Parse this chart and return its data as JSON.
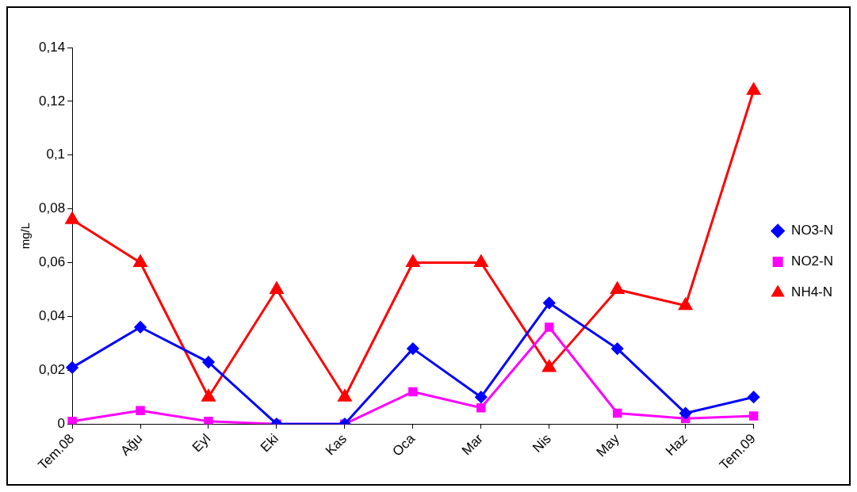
{
  "chart_data": {
    "type": "line",
    "ylabel": "mg/L",
    "categories": [
      "Tem.08",
      "Ağu",
      "Eyl",
      "Eki",
      "Kas",
      "Oca",
      "Mar",
      "Nis",
      "May",
      "Haz",
      "Tem.09"
    ],
    "series": [
      {
        "name": "NO3-N",
        "color": "#0000ff",
        "marker": "diamond",
        "values": [
          0.021,
          0.036,
          0.023,
          0,
          0,
          0.028,
          0.01,
          0.045,
          0.028,
          0.004,
          0.01
        ]
      },
      {
        "name": "NO2-N",
        "color": "#ff00ff",
        "marker": "square",
        "values": [
          0.001,
          0.005,
          0.001,
          0,
          0,
          0.012,
          0.006,
          0.036,
          0.004,
          0.002,
          0.003
        ]
      },
      {
        "name": "NH4-N",
        "color": "#ff0000",
        "marker": "triangle",
        "values": [
          0.076,
          0.06,
          0.01,
          0.05,
          0.01,
          0.06,
          0.06,
          0.021,
          0.05,
          0.044,
          0.124
        ]
      }
    ],
    "ylim": [
      0,
      0.14
    ],
    "yticks": [
      0,
      {
        "value": 0.02,
        "label": "0,02"
      },
      {
        "value": 0.04,
        "label": "0,04"
      },
      {
        "value": 0.06,
        "label": "0,06"
      },
      {
        "value": 0.08,
        "label": "0,08"
      },
      {
        "value": 0.1,
        "label": "0,1"
      },
      {
        "value": 0.12,
        "label": "0,12"
      },
      {
        "value": 0.14,
        "label": "0,14"
      }
    ],
    "grid": false,
    "legend": "right"
  }
}
